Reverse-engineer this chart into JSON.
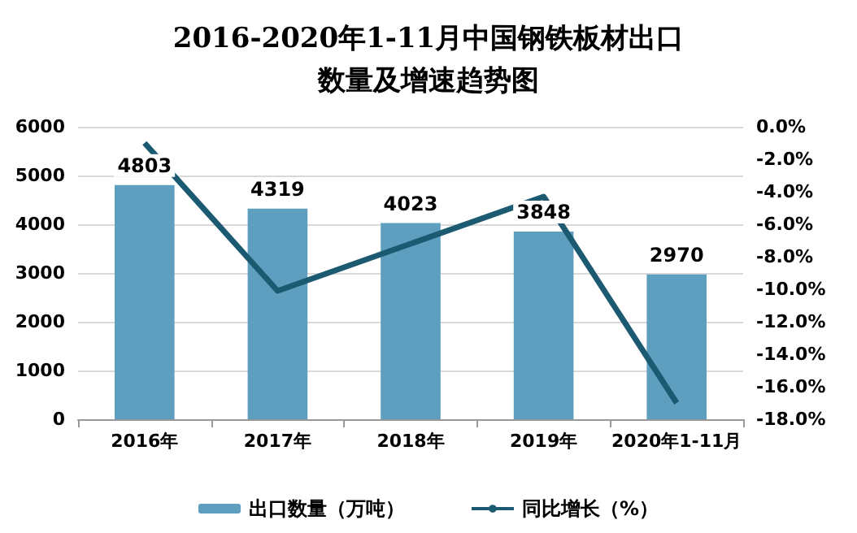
{
  "chart_data": {
    "type": "bar",
    "title": "2016-2020年1-11月中国钢铁板材出口数量及增速趋势图",
    "categories": [
      "2016年",
      "2017年",
      "2018年",
      "2019年",
      "2020年1-11月"
    ],
    "series": [
      {
        "name": "出口数量（万吨）",
        "color": "#5e9fc0",
        "values": [
          4803,
          4319,
          4023,
          3848,
          2970
        ],
        "data_labels": true
      },
      {
        "name": "同比增长（%）",
        "type": "line",
        "axis": "y2",
        "color": "#1c5a72",
        "values": [
          -1.0,
          -10.1,
          -7.2,
          -4.3,
          -17.0
        ]
      }
    ],
    "ylim": [
      0,
      6000
    ],
    "yticks": [
      0,
      1000,
      2000,
      3000,
      4000,
      5000,
      6000
    ],
    "y2lim": [
      -18,
      0
    ],
    "y2ticks": [
      {
        "value": -18,
        "label": "-18.0%"
      },
      {
        "value": -16,
        "label": "-16.0%"
      },
      {
        "value": -14,
        "label": "-14.0%"
      },
      {
        "value": -12,
        "label": "-12.0%"
      },
      {
        "value": -10,
        "label": "-10.0%"
      },
      {
        "value": -8,
        "label": "-8.0%"
      },
      {
        "value": -6,
        "label": "-6.0%"
      },
      {
        "value": -4,
        "label": "-4.0%"
      },
      {
        "value": -2,
        "label": "-2.0%"
      },
      {
        "value": 0,
        "label": "0.0%"
      }
    ],
    "grid": "y",
    "legend": "bottom",
    "marker": "none"
  }
}
